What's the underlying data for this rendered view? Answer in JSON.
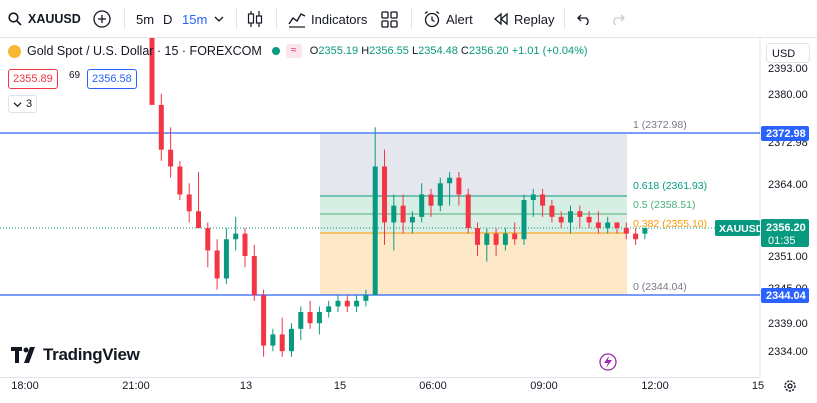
{
  "toolbar": {
    "symbol": "XAUUSD",
    "intervals": [
      "5m",
      "D",
      "15m"
    ],
    "indicators_label": "Indicators",
    "alert_label": "Alert",
    "replay_label": "Replay"
  },
  "legend": {
    "title": "Gold Spot / U.S. Dollar · 15 · FOREXCOM",
    "o_key": "O",
    "o": "2355.19",
    "h_key": "H",
    "h": "2356.55",
    "l_key": "L",
    "l": "2354.48",
    "c_key": "C",
    "c": "2356.20",
    "change": "+1.01 (+0.04%)"
  },
  "bid": "2355.89",
  "spread": "69",
  "ask": "2356.58",
  "collapse_count": "3",
  "currency": "USD",
  "price_axis": {
    "ticks": [
      "2380.00",
      "2364.00",
      "2351.00",
      "2339.00",
      "2334.00"
    ],
    "partial_ticks": [
      "2393.00",
      "2372.98",
      "2345.00"
    ]
  },
  "markers": {
    "top_line": "2372.98",
    "bottom_line": "2344.04",
    "symbol_tag": "XAUUSD",
    "last_price": "2356.20",
    "countdown": "01:35"
  },
  "fib_labels": {
    "l1": "1 (2372.98)",
    "l0618": "0.618 (2361.93)",
    "l05": "0.5 (2358.51)",
    "l0382": "0.382 (2355.10)",
    "l0": "0 (2344.04)"
  },
  "time_axis": [
    "18:00",
    "21:00",
    "13",
    "15",
    "06:00",
    "09:00",
    "12:00",
    "15"
  ],
  "branding": "TradingView",
  "colors": {
    "up": "#089981",
    "down": "#f23645",
    "accent": "#2962ff"
  },
  "chart_data": {
    "type": "candlestick",
    "y_axis_ticks": [
      2380.0,
      2364.0,
      2351.0,
      2339.0,
      2334.0
    ],
    "fibonacci_retracement": {
      "1": 2372.98,
      "0.618": 2361.93,
      "0.5": 2358.51,
      "0.382": 2355.1,
      "0": 2344.04
    },
    "last_ohlc": {
      "open": 2355.19,
      "high": 2356.55,
      "low": 2354.48,
      "close": 2356.2,
      "change": 1.01,
      "change_pct": 0.04
    },
    "candles": [
      [
        2395,
        2399,
        2378,
        2378
      ],
      [
        2378,
        2380,
        2368,
        2370
      ],
      [
        2370,
        2374,
        2365,
        2367
      ],
      [
        2367,
        2368,
        2361,
        2362
      ],
      [
        2362,
        2364,
        2357,
        2359
      ],
      [
        2359,
        2366,
        2356,
        2356
      ],
      [
        2356,
        2357,
        2349,
        2352
      ],
      [
        2352,
        2354,
        2345,
        2347
      ],
      [
        2347,
        2356,
        2346,
        2354
      ],
      [
        2354,
        2358,
        2352,
        2355
      ],
      [
        2355,
        2356,
        2349,
        2351
      ],
      [
        2351,
        2353,
        2343,
        2344
      ],
      [
        2344,
        2345,
        2333,
        2335
      ],
      [
        2335,
        2338,
        2334,
        2337
      ],
      [
        2337,
        2340,
        2333,
        2334
      ],
      [
        2334,
        2339,
        2333,
        2338
      ],
      [
        2338,
        2342,
        2336,
        2341
      ],
      [
        2341,
        2343,
        2338,
        2339
      ],
      [
        2339,
        2342,
        2337,
        2341
      ],
      [
        2341,
        2343,
        2340,
        2342
      ],
      [
        2342,
        2344,
        2341,
        2343
      ],
      [
        2343,
        2344,
        2341,
        2342
      ],
      [
        2342,
        2344,
        2341,
        2343
      ],
      [
        2343,
        2345,
        2342,
        2344
      ],
      [
        2344,
        2374,
        2344,
        2367
      ],
      [
        2367,
        2370,
        2353,
        2357
      ],
      [
        2357,
        2362,
        2352,
        2360
      ],
      [
        2360,
        2362,
        2355,
        2357
      ],
      [
        2357,
        2359,
        2355,
        2358
      ],
      [
        2358,
        2364,
        2357,
        2362
      ],
      [
        2362,
        2363,
        2358,
        2360
      ],
      [
        2360,
        2365,
        2359,
        2364
      ],
      [
        2364,
        2366,
        2360,
        2365
      ],
      [
        2365,
        2366,
        2360,
        2362
      ],
      [
        2362,
        2363,
        2355,
        2356
      ],
      [
        2356,
        2357,
        2351,
        2353
      ],
      [
        2353,
        2356,
        2350,
        2355
      ],
      [
        2355,
        2356,
        2351,
        2353
      ],
      [
        2353,
        2356,
        2352,
        2355
      ],
      [
        2355,
        2357,
        2353,
        2354
      ],
      [
        2354,
        2362,
        2353,
        2361
      ],
      [
        2361,
        2363,
        2358,
        2362
      ],
      [
        2362,
        2363,
        2358,
        2360
      ],
      [
        2360,
        2361,
        2357,
        2358
      ],
      [
        2358,
        2359,
        2356,
        2357
      ],
      [
        2357,
        2360,
        2355,
        2359
      ],
      [
        2359,
        2360,
        2356,
        2358
      ],
      [
        2358,
        2359,
        2356,
        2357
      ],
      [
        2357,
        2359,
        2355,
        2356
      ],
      [
        2356,
        2358,
        2355,
        2357
      ],
      [
        2357,
        2357,
        2355,
        2356
      ],
      [
        2356,
        2357,
        2354,
        2355
      ],
      [
        2355,
        2356,
        2353,
        2354
      ],
      [
        2355,
        2356,
        2354,
        2356
      ]
    ]
  }
}
